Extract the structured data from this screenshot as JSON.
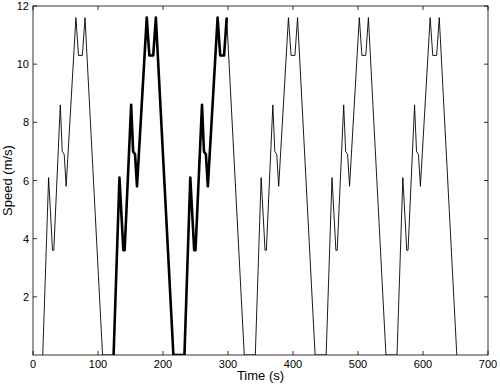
{
  "chart_data": {
    "type": "line",
    "x_label": "Time (s)",
    "y_label": "Speed (m/s)",
    "x": [
      15,
      24,
      30,
      32,
      42,
      45,
      48,
      51,
      66,
      70,
      76,
      80,
      107,
      124,
      133,
      139,
      141,
      151,
      154,
      157,
      160,
      175,
      179,
      185,
      189,
      216,
      233,
      242,
      248,
      250,
      260,
      263,
      266,
      269,
      284,
      288,
      294,
      298,
      325,
      342,
      351,
      357,
      359,
      369,
      372,
      375,
      378,
      393,
      397,
      403,
      407,
      434,
      451,
      460,
      466,
      468,
      478,
      481,
      484,
      487,
      502,
      506,
      512,
      516,
      543,
      560,
      569,
      575,
      577,
      587,
      590,
      593,
      596,
      611,
      615,
      621,
      625,
      652
    ],
    "series": [
      {
        "color": "#000000",
        "line_style": "thin",
        "values": [
          0,
          6.1,
          3.6,
          3.6,
          8.6,
          7.0,
          6.9,
          5.8,
          11.6,
          10.3,
          10.3,
          11.6,
          0,
          0,
          6.1,
          3.6,
          3.6,
          8.6,
          7.0,
          6.9,
          5.8,
          11.6,
          10.3,
          10.3,
          11.6,
          0,
          0,
          6.1,
          3.6,
          3.6,
          8.6,
          7.0,
          6.9,
          5.8,
          11.6,
          10.3,
          10.3,
          11.6,
          0,
          0,
          6.1,
          3.6,
          3.6,
          8.6,
          7.0,
          6.9,
          5.8,
          11.6,
          10.3,
          10.3,
          11.6,
          0,
          0,
          6.1,
          3.6,
          3.6,
          8.6,
          7.0,
          6.9,
          5.8,
          11.6,
          10.3,
          10.3,
          11.6,
          0,
          0,
          6.1,
          3.6,
          3.6,
          8.6,
          7.0,
          6.9,
          5.8,
          11.6,
          10.3,
          10.3,
          11.6,
          0
        ]
      },
      {
        "color": "#000000",
        "line_style": "thick",
        "values": [
          null,
          null,
          null,
          null,
          null,
          null,
          null,
          null,
          null,
          null,
          null,
          null,
          null,
          0,
          6.1,
          3.6,
          3.6,
          8.6,
          7.0,
          6.9,
          5.8,
          11.6,
          10.3,
          10.3,
          11.6,
          0,
          0,
          6.1,
          3.6,
          3.6,
          8.6,
          7.0,
          6.9,
          5.8,
          11.6,
          10.3,
          10.3,
          11.6,
          null,
          null,
          null,
          null,
          null,
          null,
          null,
          null,
          null,
          null,
          null,
          null,
          null,
          null,
          null,
          null,
          null,
          null,
          null,
          null,
          null,
          null,
          null,
          null,
          null,
          null,
          null,
          null,
          null,
          null,
          null,
          null,
          null,
          null,
          null,
          null,
          null,
          null,
          null,
          null
        ]
      }
    ],
    "xlim": [
      0,
      700
    ],
    "xticks": [
      0,
      100,
      200,
      300,
      400,
      500,
      600,
      700
    ],
    "ylim": [
      0,
      12
    ],
    "yticks": [
      2,
      4,
      6,
      8,
      10,
      12
    ],
    "grid": false
  }
}
